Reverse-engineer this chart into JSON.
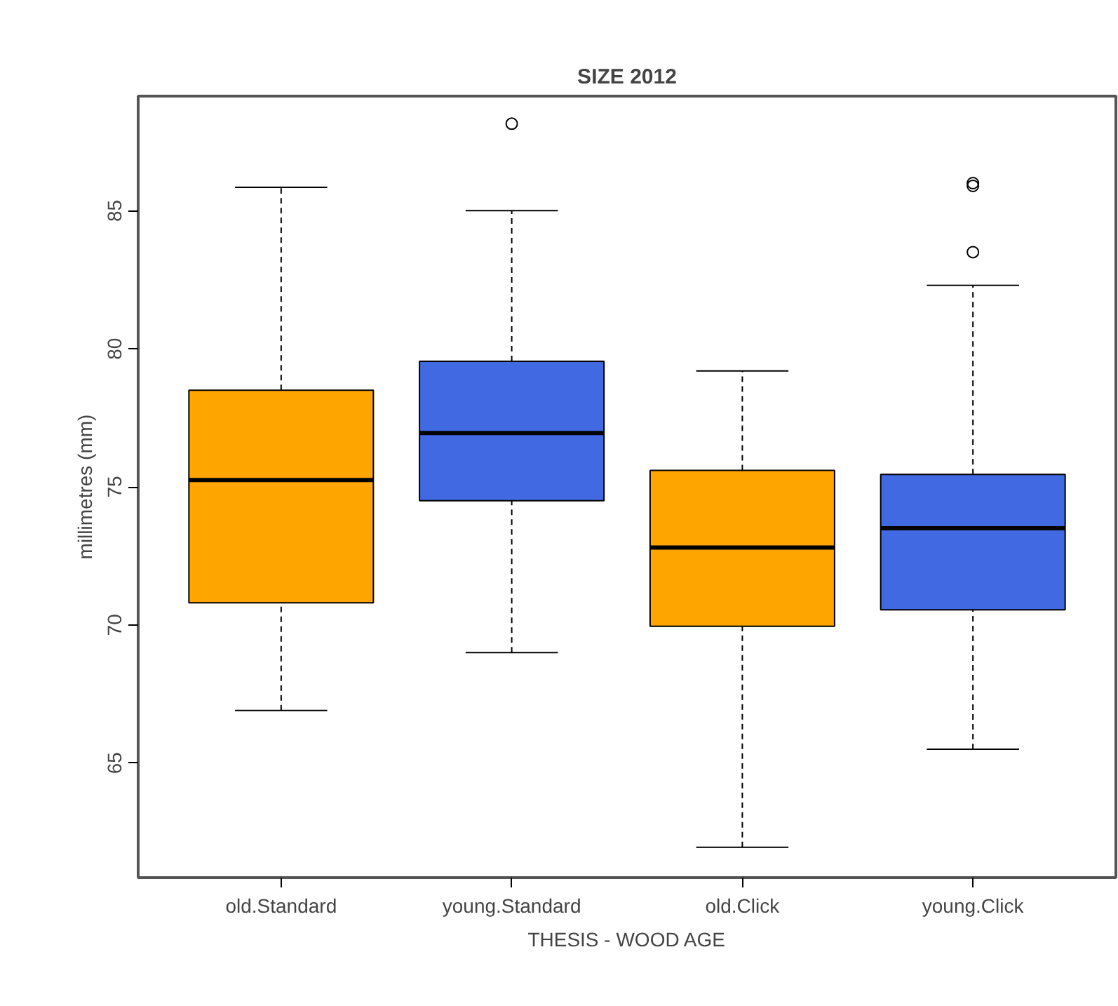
{
  "chart_data": {
    "type": "box",
    "title": "SIZE 2012",
    "xlabel": "THESIS - WOOD AGE",
    "ylabel": "millimetres (mm)",
    "categories": [
      "old.Standard",
      "young.Standard",
      "old.Click",
      "young.Click"
    ],
    "colors": [
      "#ffa500",
      "#4169e1",
      "#ffa500",
      "#4169e1"
    ],
    "boxes": [
      {
        "low": 66.9,
        "q1": 70.8,
        "median": 75.25,
        "q3": 78.5,
        "high": 85.85
      },
      {
        "low": 69.0,
        "q1": 74.5,
        "median": 76.95,
        "q3": 79.55,
        "high": 85.0,
        "outliers": [
          88.15
        ]
      },
      {
        "low": 61.95,
        "q1": 69.95,
        "median": 72.8,
        "q3": 75.6,
        "high": 79.2
      },
      {
        "low": 65.5,
        "q1": 70.55,
        "median": 73.5,
        "q3": 75.45,
        "high": 82.3,
        "outliers": [
          86.0,
          85.9,
          83.5
        ]
      }
    ],
    "ylim": [
      60.85,
      89.15
    ],
    "yticks": [
      65,
      70,
      75,
      80,
      85
    ],
    "grid": false
  }
}
